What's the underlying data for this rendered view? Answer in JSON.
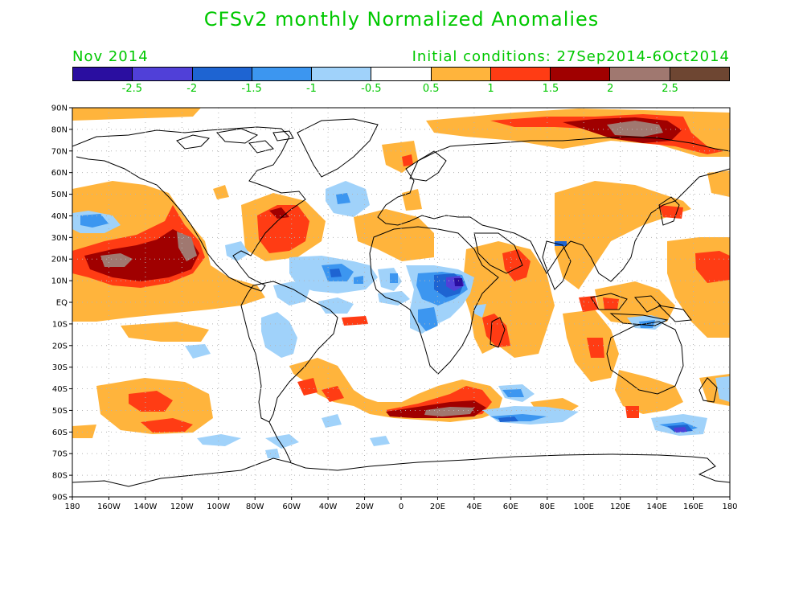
{
  "title": "CFSv2 monthly Normalized Anomalies",
  "forecast_month": "Nov 2014",
  "initial_conditions": "Initial conditions: 27Sep2014-6Oct2014",
  "colors": {
    "text_green": "#00c800",
    "scale": [
      "#2a0ea0",
      "#5040d8",
      "#1e64d2",
      "#3c96f0",
      "#a0d2fa",
      "#ffffff",
      "#ffb43c",
      "#ff3c14",
      "#a00000",
      "#a07870",
      "#6e4632"
    ]
  },
  "colorbar": {
    "ticks": [
      "-2.5",
      "-2",
      "-1.5",
      "-1",
      "-0.5",
      "0.5",
      "1",
      "1.5",
      "2",
      "2.5"
    ]
  },
  "axes": {
    "lat_labels": [
      "90N",
      "80N",
      "70N",
      "60N",
      "50N",
      "40N",
      "30N",
      "20N",
      "10N",
      "EQ",
      "10S",
      "20S",
      "30S",
      "40S",
      "50S",
      "60S",
      "70S",
      "80S",
      "90S"
    ],
    "lon_labels": [
      "180",
      "160W",
      "140W",
      "120W",
      "100W",
      "80W",
      "60W",
      "40W",
      "20W",
      "0",
      "20E",
      "40E",
      "60E",
      "80E",
      "100E",
      "120E",
      "140E",
      "160E",
      "180"
    ]
  }
}
